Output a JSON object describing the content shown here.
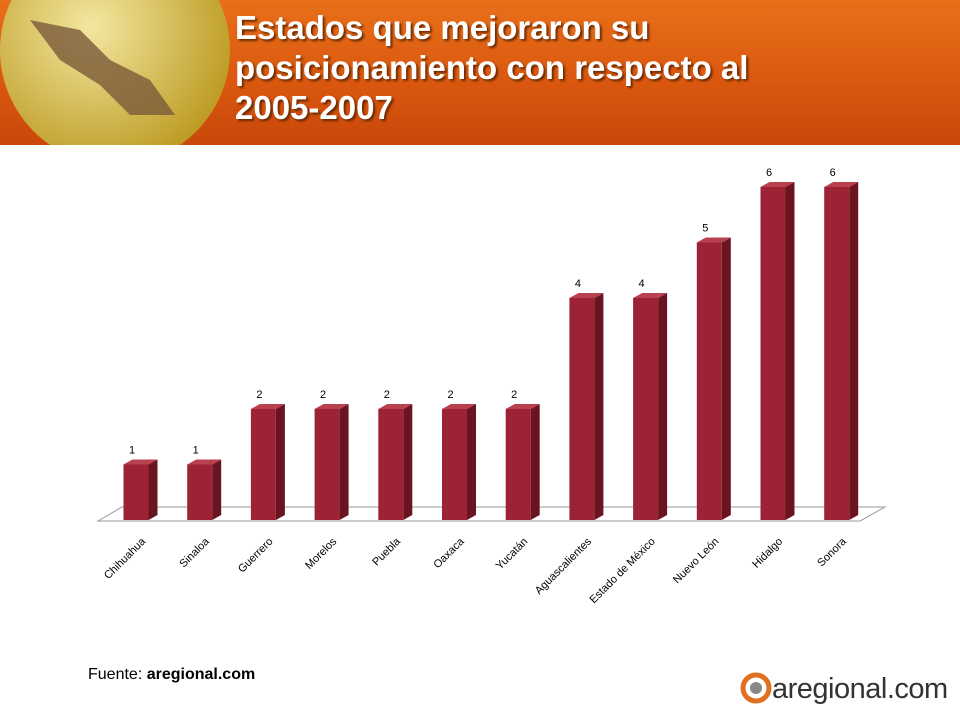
{
  "header": {
    "title": "Estados que mejoraron su posicionamiento con respecto al 2005-2007"
  },
  "chart_data": {
    "type": "bar",
    "categories": [
      "Chihuahua",
      "Sinaloa",
      "Guerrero",
      "Morelos",
      "Puebla",
      "Oaxaca",
      "Yucatán",
      "Aguascalientes",
      "Estado de México",
      "Nuevo León",
      "Hidalgo",
      "Sonora"
    ],
    "values": [
      1,
      1,
      2,
      2,
      2,
      2,
      2,
      4,
      4,
      5,
      6,
      6
    ],
    "color": "#9b2335",
    "ylim": [
      0,
      6
    ]
  },
  "footer": {
    "source_label": "Fuente:",
    "source": "aregional.com"
  },
  "logo": {
    "text": "aregional.com"
  }
}
